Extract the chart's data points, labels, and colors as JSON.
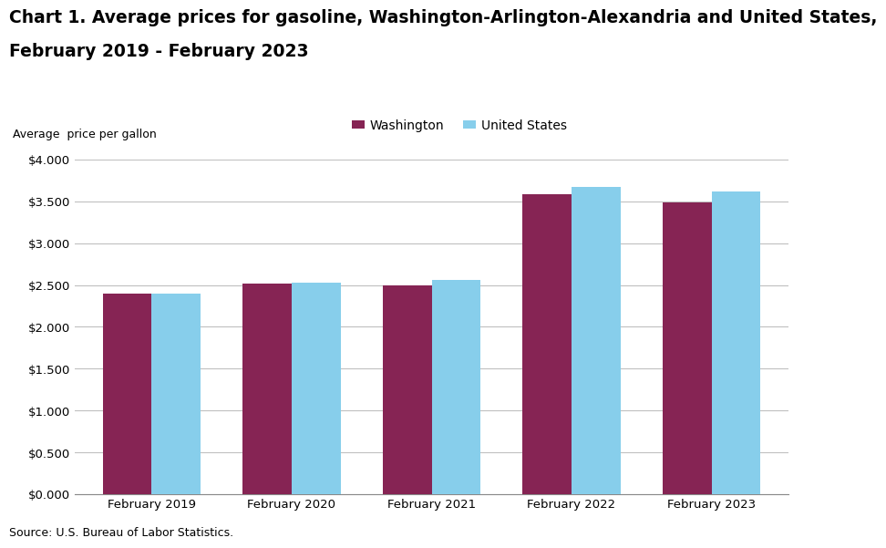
{
  "title_line1": "Chart 1. Average prices for gasoline, Washington-Arlington-Alexandria and United States,",
  "title_line2": "February 2019 - February 2023",
  "ylabel": "Average  price per gallon",
  "source": "Source: U.S. Bureau of Labor Statistics.",
  "categories": [
    "February 2019",
    "February 2020",
    "February 2021",
    "February 2022",
    "February 2023"
  ],
  "washington_values": [
    2.4,
    2.522,
    2.49,
    3.58,
    3.49
  ],
  "us_values": [
    2.392,
    2.531,
    2.557,
    3.672,
    3.62
  ],
  "washington_color": "#862454",
  "us_color": "#87CEEB",
  "washington_label": "Washington",
  "us_label": "United States",
  "ylim": [
    0.0,
    4.0
  ],
  "yticks": [
    0.0,
    0.5,
    1.0,
    1.5,
    2.0,
    2.5,
    3.0,
    3.5,
    4.0
  ],
  "bar_width": 0.35,
  "title_fontsize": 13.5,
  "axis_label_fontsize": 9,
  "tick_fontsize": 9.5,
  "legend_fontsize": 10,
  "source_fontsize": 9,
  "background_color": "#ffffff",
  "grid_color": "#c0c0c0"
}
